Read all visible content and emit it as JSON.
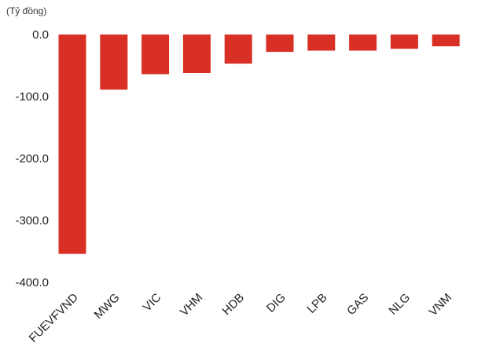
{
  "chart_data": {
    "type": "bar",
    "unit_label": "(Tỷ đồng)",
    "categories": [
      "FUEVFVND",
      "MWG",
      "VIC",
      "VHM",
      "HDB",
      "DIG",
      "LPB",
      "GAS",
      "NLG",
      "VNM"
    ],
    "values": [
      -354,
      -89,
      -64,
      -62,
      -47,
      -28,
      -26,
      -26,
      -23,
      -19
    ],
    "y_ticks": [
      "0.0",
      "-100.0",
      "-200.0",
      "-300.0",
      "-400.0"
    ],
    "y_tick_values": [
      0,
      -100,
      -200,
      -300,
      -400
    ],
    "ylim": [
      -400,
      0
    ],
    "bar_color": "#d93025",
    "grid": false,
    "legend": "none"
  }
}
